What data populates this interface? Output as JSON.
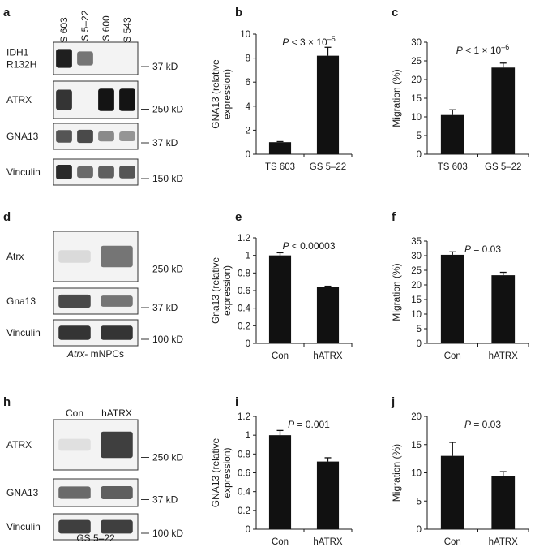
{
  "blots": [
    {
      "letter": "a",
      "columns": [
        "TS 603",
        "GS 5–22",
        "GS 600",
        "TS 543"
      ],
      "rows": [
        {
          "label": "IDH1\nR132H",
          "kd": "37 kD",
          "intensity": [
            0.95,
            0.55,
            0.0,
            0.0
          ]
        },
        {
          "label": "ATRX",
          "kd": "250 kD",
          "intensity": [
            0.85,
            0.0,
            1.0,
            1.0
          ]
        },
        {
          "label": "GNA13",
          "kd": "37 kD",
          "intensity": [
            0.7,
            0.75,
            0.45,
            0.4
          ]
        },
        {
          "label": "Vinculin",
          "kd": "150 kD",
          "intensity": [
            0.9,
            0.6,
            0.65,
            0.7
          ]
        }
      ]
    },
    {
      "letter": "d",
      "columns": [
        "Con",
        "hATRX"
      ],
      "caption": "Atrx- mNPCs",
      "rows": [
        {
          "label": "Atrx",
          "kd": "250 kD",
          "intensity": [
            0.08,
            0.55
          ]
        },
        {
          "label": "Gna13",
          "kd": "37 kD",
          "intensity": [
            0.75,
            0.55
          ]
        },
        {
          "label": "Vinculin",
          "kd": "100 kD",
          "intensity": [
            0.85,
            0.85
          ]
        }
      ]
    },
    {
      "letter": "h",
      "columns": [
        "Con",
        "hATRX"
      ],
      "caption": "GS 5–22",
      "rows": [
        {
          "label": "ATRX",
          "kd": "250 kD",
          "intensity": [
            0.05,
            0.8
          ]
        },
        {
          "label": "GNA13",
          "kd": "37 kD",
          "intensity": [
            0.6,
            0.65
          ]
        },
        {
          "label": "Vinculin",
          "kd": "100 kD",
          "intensity": [
            0.8,
            0.8
          ]
        }
      ]
    }
  ],
  "chart_data": [
    {
      "letter": "b",
      "type": "bar",
      "categories": [
        "TS 603",
        "GS 5–22"
      ],
      "values": [
        1.0,
        8.2
      ],
      "errors": [
        0.05,
        0.7
      ],
      "ylabel": "GNA13 (relative\nexpression)",
      "ylim": [
        0,
        10
      ],
      "yticks": [
        0,
        2,
        4,
        6,
        8,
        10
      ],
      "ytick_labels": [
        "0",
        "2",
        "4",
        "6",
        "8",
        "10"
      ],
      "annotation": "P < 3 × 10–5"
    },
    {
      "letter": "c",
      "type": "bar",
      "categories": [
        "TS 603",
        "GS 5–22"
      ],
      "values": [
        10.5,
        23.2
      ],
      "errors": [
        1.4,
        1.2
      ],
      "ylabel": "Migration (%)",
      "ylim": [
        0,
        30
      ],
      "yticks": [
        0,
        5,
        10,
        15,
        20,
        25,
        30
      ],
      "ytick_labels": [
        "0",
        "5",
        "10",
        "15",
        "20",
        "25",
        "30"
      ],
      "annotation": "P < 1 × 10–6"
    },
    {
      "letter": "e",
      "type": "bar",
      "categories": [
        "Con",
        "hATRX"
      ],
      "values": [
        1.0,
        0.64
      ],
      "errors": [
        0.03,
        0.01
      ],
      "ylabel": "Gna13 (relative\nexpression)",
      "ylim": [
        0,
        1.2
      ],
      "yticks": [
        0,
        0.2,
        0.4,
        0.6,
        0.8,
        1,
        1.2
      ],
      "ytick_labels": [
        "0",
        "0.2",
        "0.4",
        "0.6",
        "0.8",
        "1",
        "1.2"
      ],
      "annotation": "P < 0.00003"
    },
    {
      "letter": "f",
      "type": "bar",
      "categories": [
        "Con",
        "hATRX"
      ],
      "values": [
        30.3,
        23.3
      ],
      "errors": [
        1.0,
        1.0
      ],
      "ylabel": "Migration (%)",
      "ylim": [
        0,
        35
      ],
      "yticks": [
        0,
        5,
        10,
        15,
        20,
        25,
        30,
        35
      ],
      "ytick_labels": [
        "0",
        "5",
        "10",
        "15",
        "20",
        "25",
        "30",
        "35"
      ],
      "annotation": "P = 0.03"
    },
    {
      "letter": "i",
      "type": "bar",
      "categories": [
        "Con",
        "hATRX"
      ],
      "values": [
        1.0,
        0.72
      ],
      "errors": [
        0.05,
        0.04
      ],
      "ylabel": "GNA13 (relative\nexpression)",
      "ylim": [
        0,
        1.2
      ],
      "yticks": [
        0,
        0.2,
        0.4,
        0.6,
        0.8,
        1,
        1.2
      ],
      "ytick_labels": [
        "0",
        "0.2",
        "0.4",
        "0.6",
        "0.8",
        "1",
        "1.2"
      ],
      "annotation": "P = 0.001"
    },
    {
      "letter": "j",
      "type": "bar",
      "categories": [
        "Con",
        "hATRX"
      ],
      "values": [
        13.0,
        9.4
      ],
      "errors": [
        2.4,
        0.8
      ],
      "ylabel": "Migration (%)",
      "ylim": [
        0,
        20
      ],
      "yticks": [
        0,
        5,
        10,
        15,
        20
      ],
      "ytick_labels": [
        "0",
        "5",
        "10",
        "15",
        "20"
      ],
      "annotation": "P = 0.03"
    }
  ]
}
